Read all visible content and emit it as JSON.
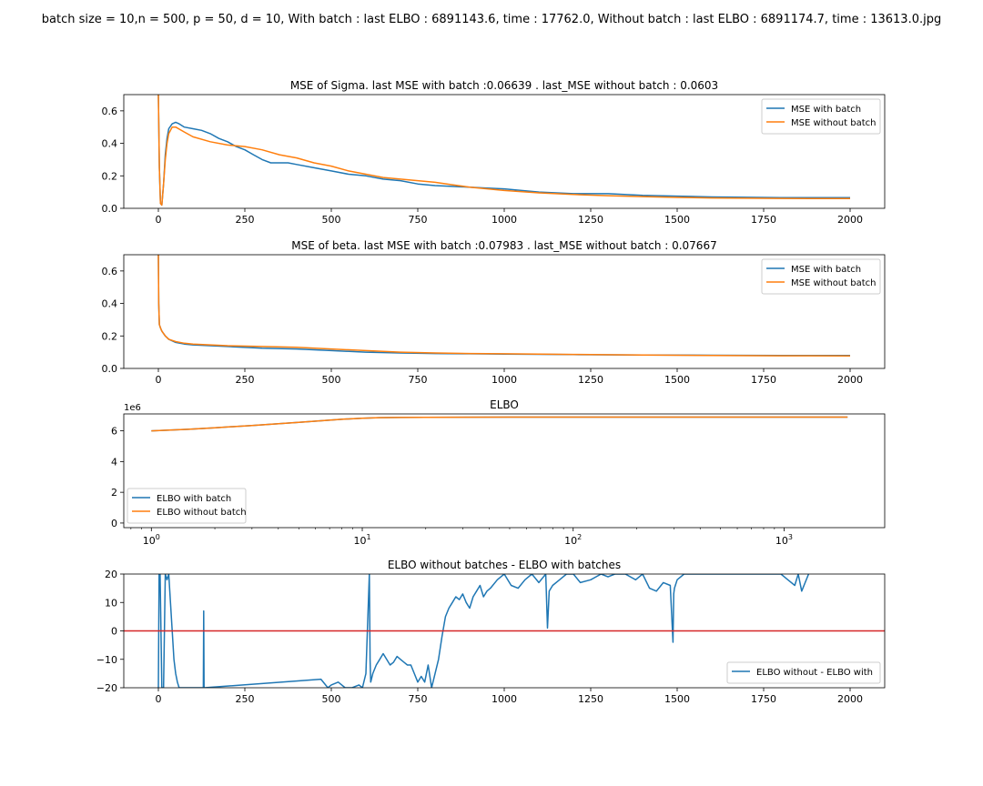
{
  "suptitle": "batch size = 10,n = 500, p = 50, d = 10, With batch : last ELBO : 6891143.6, time : 17762.0, Without batch : last ELBO : 6891174.7, time : 13613.0.jpg",
  "colors": {
    "blue": "#1f77b4",
    "orange": "#ff7f0e",
    "red": "#d62728"
  },
  "chart_data": [
    {
      "type": "line",
      "title": "MSE of Sigma. last MSE with batch :0.06639 . last_MSE without batch : 0.0603",
      "xlim": [
        -100,
        2100
      ],
      "ylim": [
        0,
        0.7
      ],
      "xticks": [
        0,
        250,
        500,
        750,
        1000,
        1250,
        1500,
        1750,
        2000
      ],
      "yticks": [
        0.0,
        0.2,
        0.4,
        0.6
      ],
      "ytick_labels": [
        "0.0",
        "0.2",
        "0.4",
        "0.6"
      ],
      "legend": "top-right",
      "series": [
        {
          "name": "MSE with batch",
          "color": "#1f77b4",
          "x": [
            0,
            3,
            6,
            10,
            15,
            20,
            25,
            30,
            40,
            50,
            60,
            75,
            100,
            125,
            150,
            175,
            200,
            225,
            250,
            275,
            300,
            325,
            350,
            375,
            400,
            450,
            500,
            550,
            600,
            650,
            700,
            750,
            800,
            850,
            900,
            950,
            1000,
            1100,
            1200,
            1300,
            1400,
            1500,
            1600,
            1700,
            1800,
            1900,
            2000
          ],
          "y": [
            0.7,
            0.25,
            0.03,
            0.02,
            0.15,
            0.33,
            0.43,
            0.49,
            0.52,
            0.53,
            0.52,
            0.5,
            0.49,
            0.48,
            0.46,
            0.43,
            0.41,
            0.38,
            0.36,
            0.33,
            0.3,
            0.28,
            0.28,
            0.28,
            0.27,
            0.25,
            0.23,
            0.21,
            0.2,
            0.18,
            0.17,
            0.15,
            0.14,
            0.135,
            0.13,
            0.125,
            0.12,
            0.1,
            0.09,
            0.09,
            0.08,
            0.075,
            0.07,
            0.068,
            0.066,
            0.066,
            0.066
          ]
        },
        {
          "name": "MSE without batch",
          "color": "#ff7f0e",
          "x": [
            0,
            3,
            6,
            10,
            15,
            20,
            25,
            30,
            40,
            50,
            75,
            100,
            150,
            200,
            250,
            300,
            350,
            400,
            450,
            500,
            550,
            600,
            650,
            700,
            750,
            800,
            850,
            900,
            1000,
            1100,
            1200,
            1300,
            1400,
            1500,
            1600,
            1700,
            1800,
            1900,
            2000
          ],
          "y": [
            0.7,
            0.25,
            0.03,
            0.02,
            0.15,
            0.3,
            0.4,
            0.46,
            0.5,
            0.5,
            0.47,
            0.44,
            0.41,
            0.39,
            0.38,
            0.36,
            0.33,
            0.31,
            0.28,
            0.26,
            0.23,
            0.21,
            0.19,
            0.18,
            0.17,
            0.16,
            0.145,
            0.13,
            0.11,
            0.095,
            0.085,
            0.078,
            0.072,
            0.067,
            0.064,
            0.062,
            0.061,
            0.06,
            0.06
          ]
        }
      ]
    },
    {
      "type": "line",
      "title": "MSE of beta. last MSE with batch :0.07983 . last_MSE without batch : 0.07667",
      "xlim": [
        -100,
        2100
      ],
      "ylim": [
        0,
        0.7
      ],
      "xticks": [
        0,
        250,
        500,
        750,
        1000,
        1250,
        1500,
        1750,
        2000
      ],
      "yticks": [
        0.0,
        0.2,
        0.4,
        0.6
      ],
      "ytick_labels": [
        "0.0",
        "0.2",
        "0.4",
        "0.6"
      ],
      "legend": "top-right",
      "series": [
        {
          "name": "MSE with batch",
          "color": "#1f77b4",
          "x": [
            0,
            1,
            3,
            6,
            10,
            20,
            30,
            50,
            75,
            100,
            150,
            200,
            300,
            400,
            500,
            600,
            700,
            800,
            900,
            1000,
            1200,
            1400,
            1600,
            1800,
            2000
          ],
          "y": [
            0.7,
            0.4,
            0.27,
            0.25,
            0.23,
            0.2,
            0.18,
            0.16,
            0.15,
            0.145,
            0.14,
            0.135,
            0.125,
            0.12,
            0.11,
            0.1,
            0.095,
            0.092,
            0.09,
            0.088,
            0.085,
            0.083,
            0.081,
            0.08,
            0.08
          ]
        },
        {
          "name": "MSE without batch",
          "color": "#ff7f0e",
          "x": [
            0,
            1,
            3,
            6,
            10,
            20,
            30,
            50,
            75,
            100,
            150,
            200,
            300,
            400,
            500,
            600,
            700,
            800,
            900,
            1000,
            1200,
            1400,
            1600,
            1800,
            2000
          ],
          "y": [
            0.7,
            0.4,
            0.27,
            0.25,
            0.23,
            0.2,
            0.18,
            0.165,
            0.155,
            0.15,
            0.145,
            0.14,
            0.135,
            0.13,
            0.12,
            0.11,
            0.1,
            0.095,
            0.092,
            0.09,
            0.086,
            0.083,
            0.08,
            0.078,
            0.077
          ]
        }
      ]
    },
    {
      "type": "line",
      "title": "ELBO",
      "xscale": "log",
      "xlim": [
        0.74,
        3000
      ],
      "ylim": [
        -0.3,
        7.1
      ],
      "y_offset_label": "1e6",
      "xticks": [
        1,
        10,
        100,
        1000
      ],
      "xtick_labels": [
        {
          "base": "10",
          "exp": "0"
        },
        {
          "base": "10",
          "exp": "1"
        },
        {
          "base": "10",
          "exp": "2"
        },
        {
          "base": "10",
          "exp": "3"
        }
      ],
      "yticks": [
        0,
        2,
        4,
        6
      ],
      "ytick_labels": [
        "0",
        "2",
        "4",
        "6"
      ],
      "legend": "bottom-left",
      "series": [
        {
          "name": "ELBO with batch",
          "color": "#1f77b4",
          "x": [
            1,
            1.5,
            2,
            3,
            5,
            8,
            10,
            12,
            15,
            20,
            50,
            100,
            500,
            1000,
            2000
          ],
          "y": [
            6.0,
            6.1,
            6.2,
            6.35,
            6.55,
            6.75,
            6.82,
            6.86,
            6.87,
            6.88,
            6.89,
            6.89,
            6.89,
            6.89,
            6.89
          ]
        },
        {
          "name": "ELBO without batch",
          "color": "#ff7f0e",
          "x": [
            1,
            1.5,
            2,
            3,
            5,
            8,
            10,
            12,
            15,
            20,
            50,
            100,
            500,
            1000,
            2000
          ],
          "y": [
            6.0,
            6.1,
            6.2,
            6.35,
            6.55,
            6.75,
            6.82,
            6.86,
            6.87,
            6.88,
            6.89,
            6.89,
            6.89,
            6.89,
            6.89
          ]
        }
      ]
    },
    {
      "type": "line",
      "title": "ELBO without batches - ELBO with batches",
      "xlim": [
        -100,
        2100
      ],
      "ylim": [
        -20,
        20
      ],
      "xticks": [
        0,
        250,
        500,
        750,
        1000,
        1250,
        1500,
        1750,
        2000
      ],
      "yticks": [
        -20,
        -10,
        0,
        10,
        20
      ],
      "ytick_labels": [
        "−20",
        "−10",
        "0",
        "10",
        "20"
      ],
      "legend": "bottom-right",
      "hline": {
        "y": 0,
        "color": "#d62728"
      },
      "series": [
        {
          "name": "ELBO without - ELBO with",
          "color": "#1f77b4",
          "x": [
            0,
            2,
            5,
            10,
            15,
            20,
            25,
            30,
            35,
            40,
            45,
            50,
            55,
            60,
            130,
            131,
            132,
            133,
            470,
            490,
            500,
            520,
            540,
            560,
            580,
            590,
            600,
            610,
            612,
            614,
            620,
            630,
            640,
            650,
            660,
            670,
            680,
            690,
            700,
            710,
            720,
            730,
            740,
            750,
            760,
            770,
            780,
            790,
            800,
            810,
            820,
            830,
            840,
            850,
            860,
            870,
            880,
            890,
            900,
            910,
            920,
            930,
            940,
            950,
            960,
            980,
            1000,
            1020,
            1040,
            1060,
            1080,
            1100,
            1120,
            1125,
            1130,
            1140,
            1160,
            1180,
            1200,
            1220,
            1250,
            1280,
            1300,
            1320,
            1350,
            1380,
            1400,
            1420,
            1440,
            1460,
            1480,
            1488,
            1490,
            1492,
            1500,
            1520,
            1540,
            1560,
            1600,
            1650,
            1700,
            1750,
            1780,
            1800,
            1820,
            1840,
            1850,
            1860,
            1870,
            1880
          ],
          "y": [
            -20,
            20,
            20,
            -20,
            -20,
            20,
            18,
            20,
            10,
            0,
            -10,
            -15,
            -18,
            -20,
            -20,
            7,
            -20,
            -20,
            -17,
            -20,
            -19,
            -18,
            -20,
            -20,
            -19,
            -20,
            -15,
            20,
            -10,
            -18,
            -15,
            -12,
            -10,
            -8,
            -10,
            -12,
            -11,
            -9,
            -10,
            -11,
            -12,
            -12,
            -15,
            -18,
            -16,
            -18,
            -12,
            -20,
            -15,
            -10,
            -2,
            5,
            8,
            10,
            12,
            11,
            13,
            10,
            8,
            12,
            14,
            16,
            12,
            14,
            15,
            18,
            20,
            16,
            15,
            18,
            20,
            17,
            20,
            1,
            14,
            16,
            18,
            20,
            20,
            17,
            18,
            20,
            19,
            20,
            20,
            18,
            20,
            15,
            14,
            17,
            16,
            -4,
            13,
            15,
            18,
            20,
            20,
            20,
            20,
            20,
            20,
            20,
            20,
            20,
            18,
            16,
            20,
            14,
            17,
            20
          ]
        }
      ]
    }
  ]
}
